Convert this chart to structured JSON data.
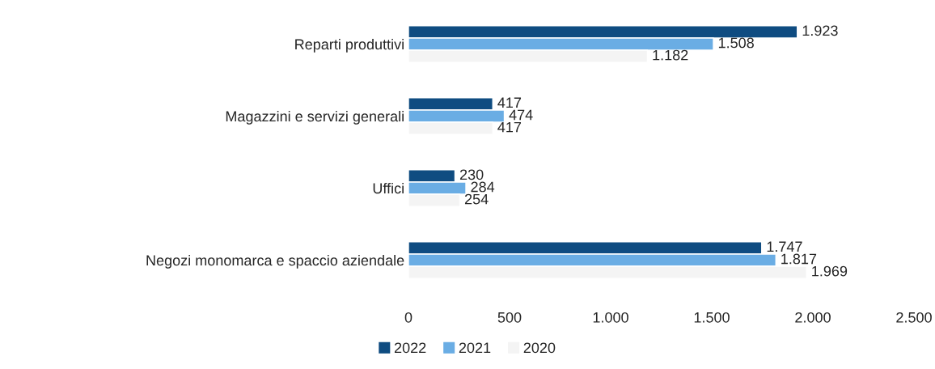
{
  "chart_data": {
    "type": "bar",
    "orientation": "horizontal",
    "categories": [
      "Reparti produttivi",
      "Magazzini e servizi generali",
      "Uffici",
      "Negozi monomarca e spaccio aziendale"
    ],
    "series": [
      {
        "name": "2022",
        "color": "#0f4c81",
        "values": [
          1923,
          417,
          230,
          1747
        ],
        "value_labels": [
          "1.923",
          "417",
          "230",
          "1.747"
        ]
      },
      {
        "name": "2021",
        "color": "#6aade4",
        "values": [
          1508,
          474,
          284,
          1817
        ],
        "value_labels": [
          "1.508",
          "474",
          "284",
          "1.817"
        ]
      },
      {
        "name": "2020",
        "color": "#f4f4f4",
        "values": [
          1182,
          417,
          254,
          1969
        ],
        "value_labels": [
          "1.182",
          "417",
          "254",
          "1.969"
        ]
      }
    ],
    "xlim": [
      0,
      2500
    ],
    "xticks": [
      0,
      500,
      {
        "value": 1000,
        "label": "1.000"
      },
      {
        "value": 1500,
        "label": "1.500"
      },
      {
        "value": 2000,
        "label": "2.000"
      },
      {
        "value": 2500,
        "label": "2.500"
      }
    ],
    "grid": false,
    "legend": "bottom"
  }
}
